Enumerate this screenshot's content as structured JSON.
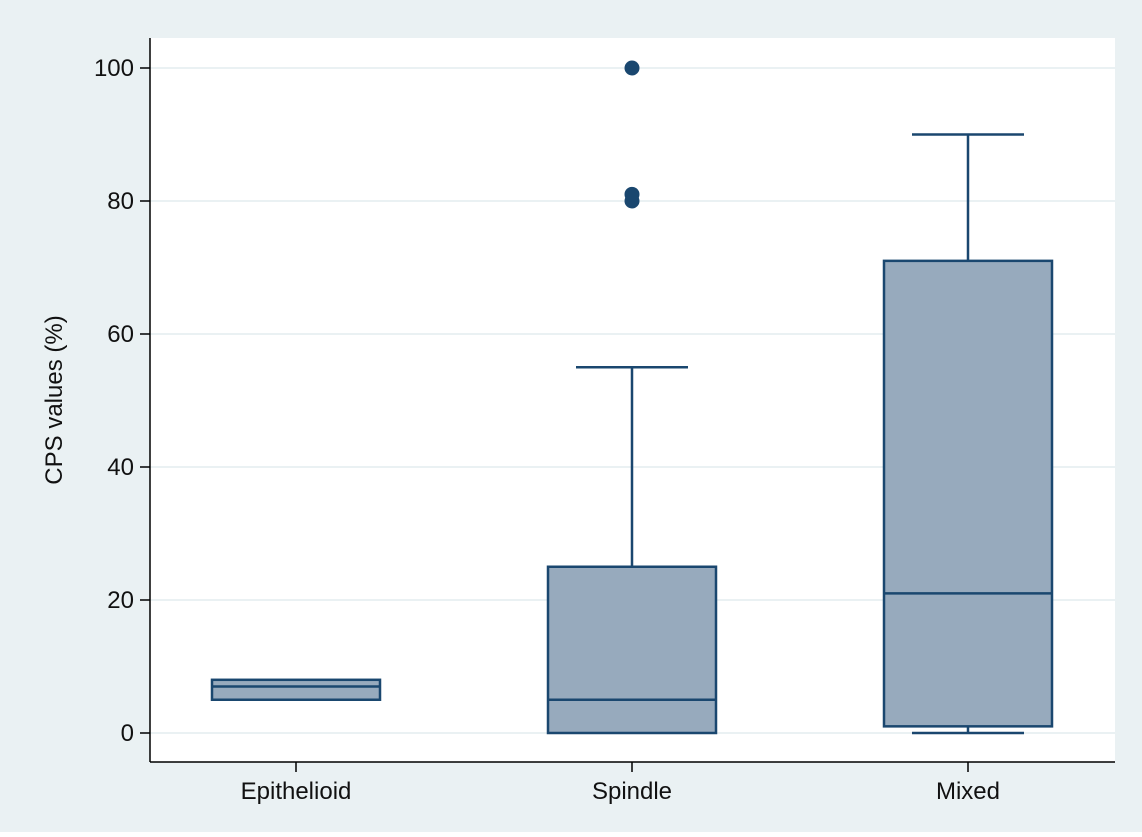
{
  "chart_data": {
    "type": "box",
    "ylabel": "CPS values (%)",
    "xlabel": "",
    "ylim": [
      0,
      100
    ],
    "yticks": [
      0,
      20,
      40,
      60,
      80,
      100
    ],
    "grid": true,
    "categories": [
      "Epithelioid",
      "Spindle",
      "Mixed"
    ],
    "boxes": [
      {
        "category": "Epithelioid",
        "whisker_low": 5,
        "q1": 5,
        "median": 7,
        "q3": 8,
        "whisker_high": 8,
        "outliers": []
      },
      {
        "category": "Spindle",
        "whisker_low": 0,
        "q1": 0,
        "median": 5,
        "q3": 25,
        "whisker_high": 55,
        "outliers": [
          80,
          81,
          100
        ]
      },
      {
        "category": "Mixed",
        "whisker_low": 0,
        "q1": 1,
        "median": 21,
        "q3": 71,
        "whisker_high": 90,
        "outliers": []
      }
    ]
  },
  "colors": {
    "outer_background": "#eaf1f3",
    "plot_background": "#ffffff",
    "gridline": "#eaf1f3",
    "box_fill": "#97aabd",
    "box_stroke": "#1a476f",
    "outlier": "#1a476f",
    "axis": "#000000"
  }
}
